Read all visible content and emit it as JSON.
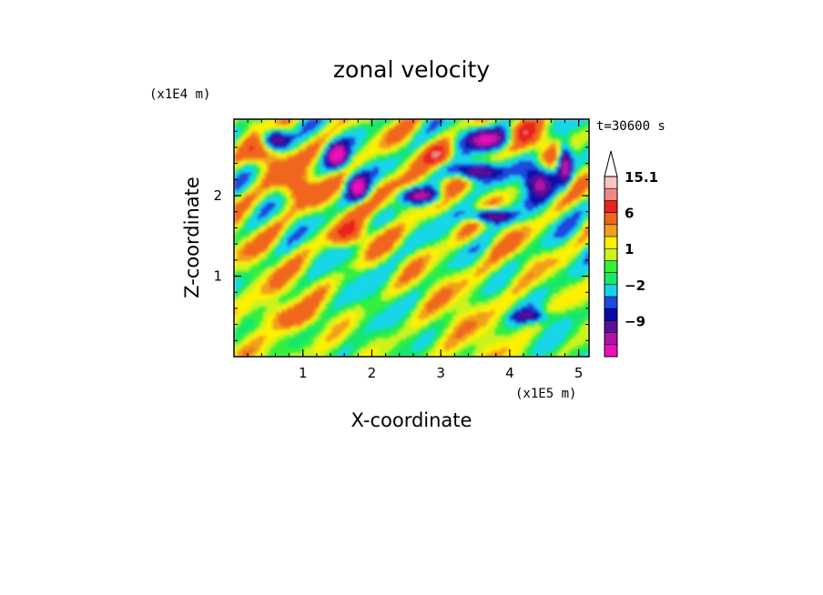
{
  "chart_data": {
    "type": "heatmap",
    "title": "zonal velocity",
    "xlabel": "X-coordinate",
    "ylabel": "Z-coordinate",
    "x_scale_label": "(x1E5 m)",
    "z_scale_label": "(x1E4 m)",
    "time_label": "t=30600 s",
    "xlim": [
      0,
      5.15
    ],
    "zlim": [
      0,
      2.95
    ],
    "x_ticks": [
      1,
      2,
      3,
      4,
      5
    ],
    "x_tick_labels": [
      "1",
      "2",
      "3",
      "4",
      "5"
    ],
    "z_ticks": [
      1,
      2
    ],
    "z_tick_labels": [
      "1",
      "2"
    ],
    "colorbar": {
      "levels": [
        -15,
        -12,
        -9,
        -6,
        -4,
        -2,
        -1,
        0,
        1,
        2,
        3,
        6,
        9,
        12,
        15.1
      ],
      "tick_labels": [
        {
          "value": 15.1,
          "label": "15.1"
        },
        {
          "value": 6,
          "label": "6"
        },
        {
          "value": 1,
          "label": "1"
        },
        {
          "value": -2,
          "label": "−2"
        },
        {
          "value": -9,
          "label": "−9"
        }
      ],
      "colors": [
        "#f00fbd",
        "#b112a8",
        "#5a109b",
        "#0a0ba5",
        "#1f48e0",
        "#12d6e8",
        "#19e76a",
        "#34f03a",
        "#ccf21a",
        "#fff000",
        "#f1a01f",
        "#f0661c",
        "#e8231e",
        "#f08983",
        "#f8c4c0"
      ]
    },
    "grid": false
  }
}
